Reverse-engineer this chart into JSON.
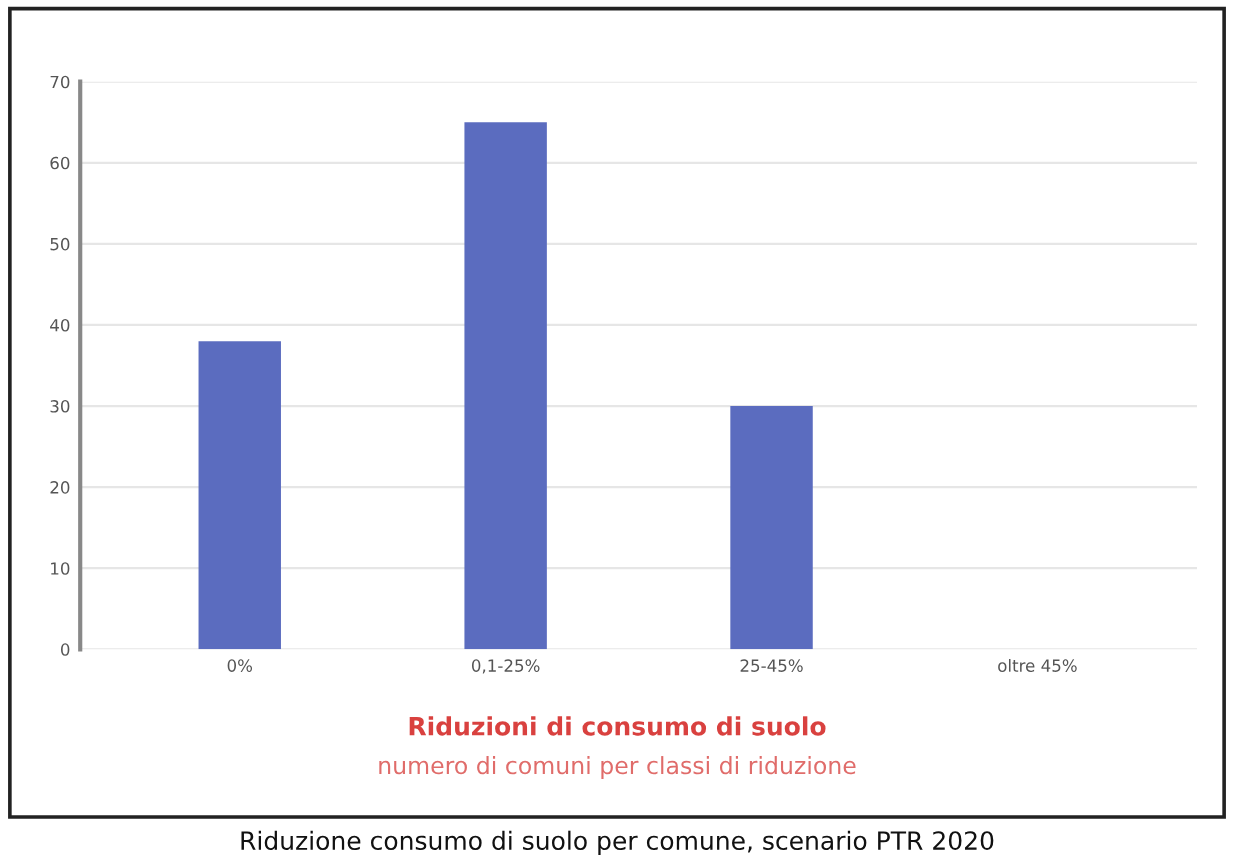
{
  "chart_data": {
    "type": "bar",
    "title": "Riduzioni di consumo di suolo",
    "subtitle": "numero di comuni per classi di riduzione",
    "categories": [
      "0%",
      "0,1-25%",
      "25-45%",
      "oltre 45%"
    ],
    "values": [
      38,
      65,
      30,
      0
    ],
    "color": "#5b6cbf",
    "ylim": [
      0,
      70
    ],
    "yticks": [
      0,
      10,
      20,
      30,
      40,
      50,
      60,
      70
    ],
    "grid": "y",
    "annotations": [
      "Riduzione consumo di suolo per comune, scenario PTR 2020"
    ]
  }
}
